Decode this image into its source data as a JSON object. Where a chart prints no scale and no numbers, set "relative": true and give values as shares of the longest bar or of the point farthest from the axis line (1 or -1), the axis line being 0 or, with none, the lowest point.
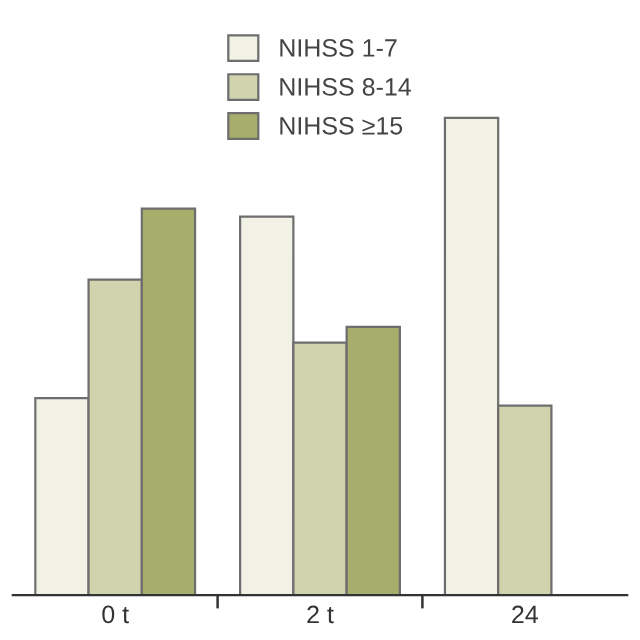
{
  "chart_data": {
    "type": "bar",
    "relative": true,
    "categories": [
      "0 t",
      "2 t",
      "24"
    ],
    "series": [
      {
        "name": "NIHSS 1-7",
        "color": "#f2f1e6",
        "values": [
          0.413,
          0.793,
          1
        ]
      },
      {
        "name": "NIHSS 8-14",
        "color": "#d0d3ad",
        "values": [
          0.661,
          0.529,
          0.397
        ]
      },
      {
        "name": "NIHSS ≥15",
        "color": "#a7ad6a",
        "values": [
          0.81,
          0.562,
          null
        ]
      }
    ],
    "legend": "top",
    "grid": false
  }
}
